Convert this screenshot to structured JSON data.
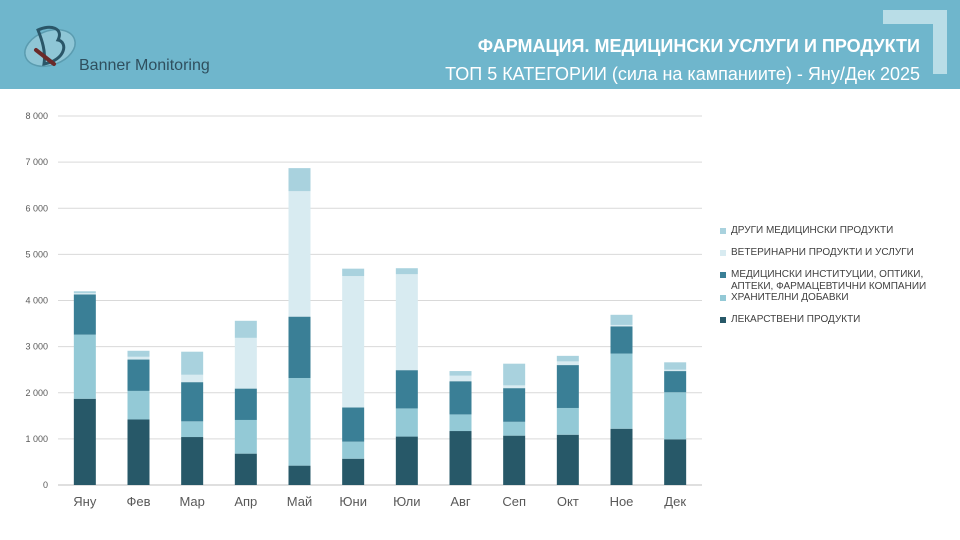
{
  "header": {
    "brand": "Banner Monitoring",
    "title": "ФАРМАЦИЯ. МЕДИЦИНСКИ УСЛУГИ И ПРОДУКТИ",
    "subtitle": "ТОП 5 КАТЕГОРИИ (сила на кампаниите) - Яну/Дек 2025"
  },
  "colors": {
    "header_bg": "#6fb6cc",
    "series": [
      "#275868",
      "#93c9d6",
      "#3a7f96",
      "#d8ebf1",
      "#a9d2de"
    ]
  },
  "chart_data": {
    "type": "bar",
    "stacked": true,
    "categories": [
      "Яну",
      "Фев",
      "Мар",
      "Апр",
      "Май",
      "Юни",
      "Юли",
      "Авг",
      "Сеп",
      "Окт",
      "Ное",
      "Дек"
    ],
    "series": [
      {
        "name": "ЛЕКАРСТВЕНИ ПРОДУКТИ",
        "values": [
          1870,
          1420,
          1040,
          680,
          420,
          570,
          1050,
          1170,
          1070,
          1090,
          1220,
          990
        ]
      },
      {
        "name": "ХРАНИТЕЛНИ ДОБАВКИ",
        "values": [
          1390,
          620,
          340,
          730,
          1900,
          370,
          610,
          360,
          300,
          580,
          1630,
          1020
        ]
      },
      {
        "name": "МЕДИЦИНСКИ ИНСТИТУЦИИ, ОПТИКИ, АПТЕКИ, ФАРМАЦЕВТИЧНИ КОМПАНИИ",
        "values": [
          870,
          680,
          850,
          680,
          1330,
          740,
          830,
          720,
          730,
          930,
          590,
          460
        ]
      },
      {
        "name": "ВЕТЕРИНАРНИ ПРОДУКТИ И УСЛУГИ",
        "values": [
          30,
          60,
          160,
          1100,
          2720,
          2850,
          2080,
          120,
          60,
          80,
          30,
          30
        ]
      },
      {
        "name": "ДРУГИ МЕДИЦИНСКИ ПРОДУКТИ",
        "values": [
          40,
          130,
          500,
          370,
          500,
          160,
          130,
          100,
          470,
          120,
          220,
          160
        ]
      }
    ],
    "y_ticks": [
      "0",
      "1 000",
      "2 000",
      "3 000",
      "4 000",
      "5 000",
      "6 000",
      "7 000",
      "8 000"
    ],
    "ylim": [
      0,
      8000
    ],
    "grid": true,
    "legend_position": "right"
  }
}
